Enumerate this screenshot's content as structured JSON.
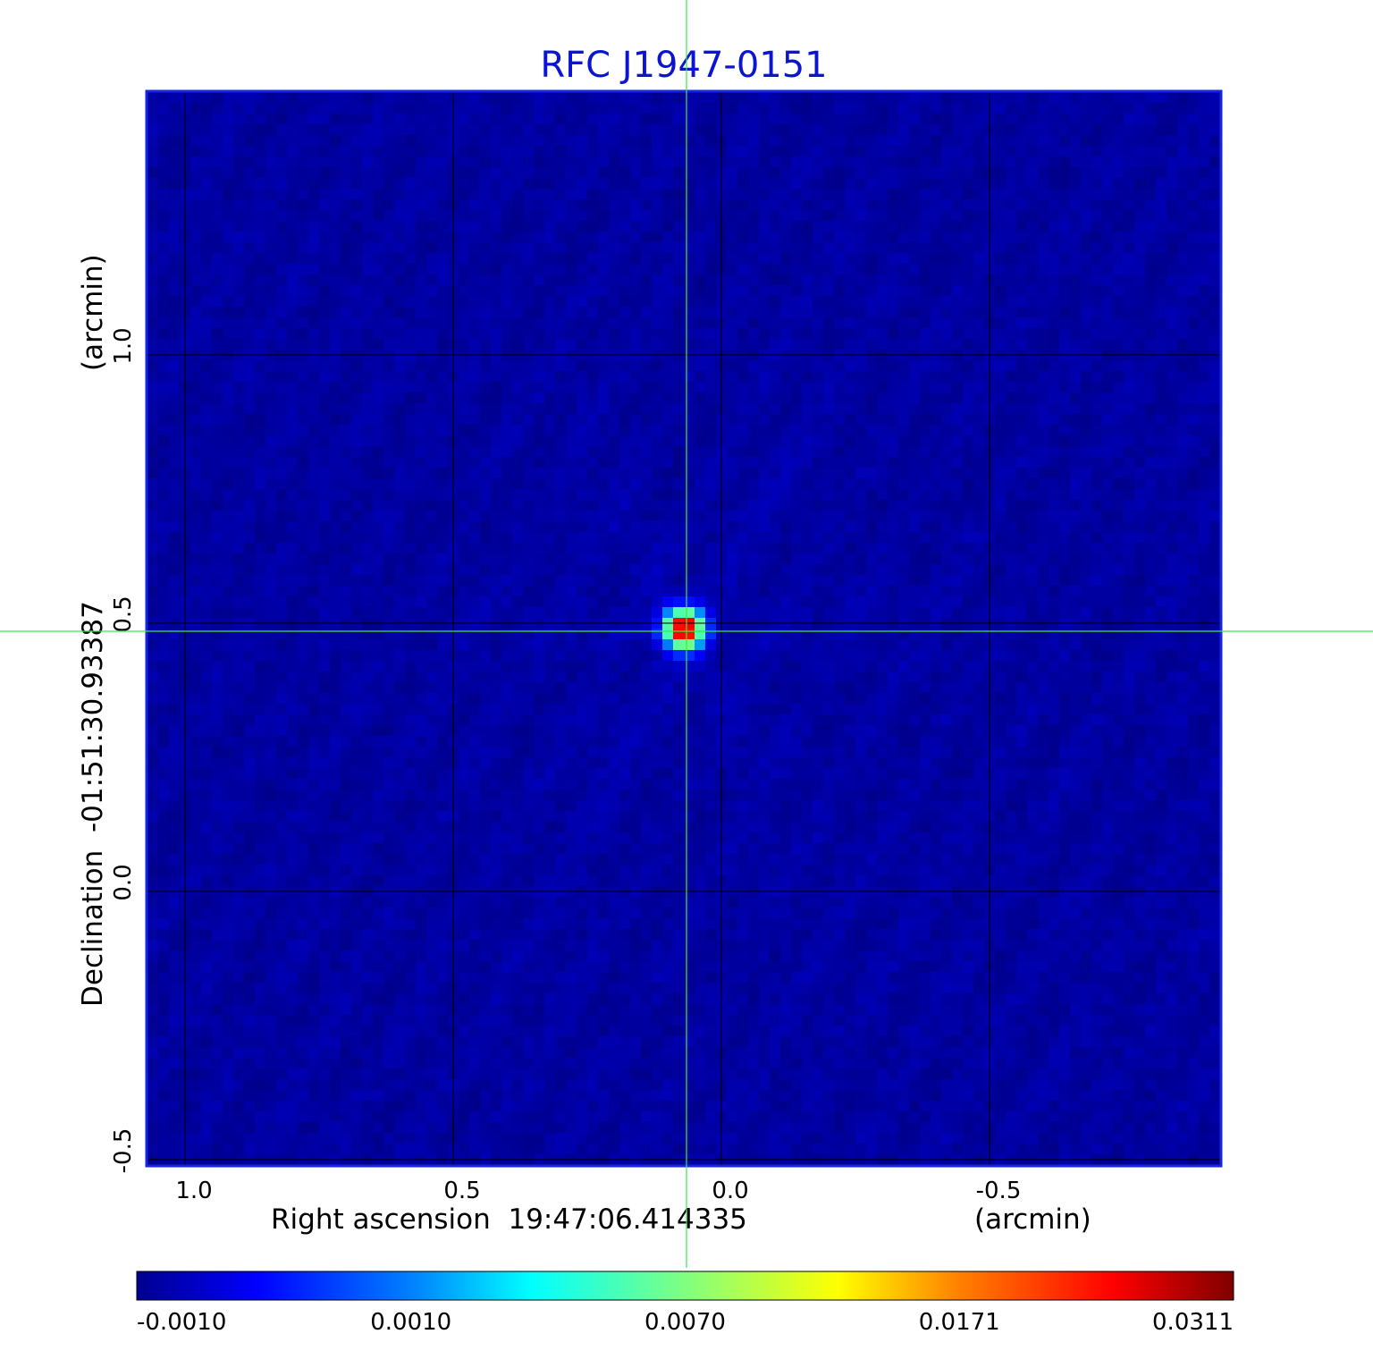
{
  "chart_data": {
    "type": "heatmap",
    "title": "RFC J1947-0151",
    "xlabel": "Right ascension  19:47:06.414335",
    "xunit": "(arcmin)",
    "ylabel": "Declination  -01:51:30.93387",
    "yunit": "(arcmin)",
    "xlim": [
      1.07,
      -0.93
    ],
    "ylim": [
      -0.51,
      1.49
    ],
    "x_ticks": [
      {
        "value": 1.0,
        "label": "1.0"
      },
      {
        "value": 0.5,
        "label": "0.5"
      },
      {
        "value": 0.0,
        "label": "0.0"
      },
      {
        "value": -0.5,
        "label": "-0.5"
      }
    ],
    "y_ticks": [
      {
        "value": -0.5,
        "label": "-0.5"
      },
      {
        "value": 0.0,
        "label": "0.0"
      },
      {
        "value": 0.5,
        "label": "0.5"
      },
      {
        "value": 1.0,
        "label": "1.0"
      }
    ],
    "grid": true,
    "crosshair": {
      "x": 0.065,
      "y": 0.485
    },
    "source_peak": {
      "x": 0.07,
      "y": 0.49,
      "value": 0.0311
    },
    "background_level": 0.0,
    "colorbar": {
      "colormap": "jet",
      "range": [
        -0.001,
        0.0311
      ],
      "ticks": [
        {
          "value": -0.001,
          "label": "-0.0010"
        },
        {
          "value": 0.001,
          "label": "0.0010"
        },
        {
          "value": 0.007,
          "label": "0.0070"
        },
        {
          "value": 0.0171,
          "label": "0.0171"
        },
        {
          "value": 0.0311,
          "label": "0.0311"
        }
      ]
    }
  },
  "colors": {
    "title": "#0a14d2",
    "grid": "#000000",
    "crosshair": "#33ee44",
    "frame": "#1426e0"
  }
}
